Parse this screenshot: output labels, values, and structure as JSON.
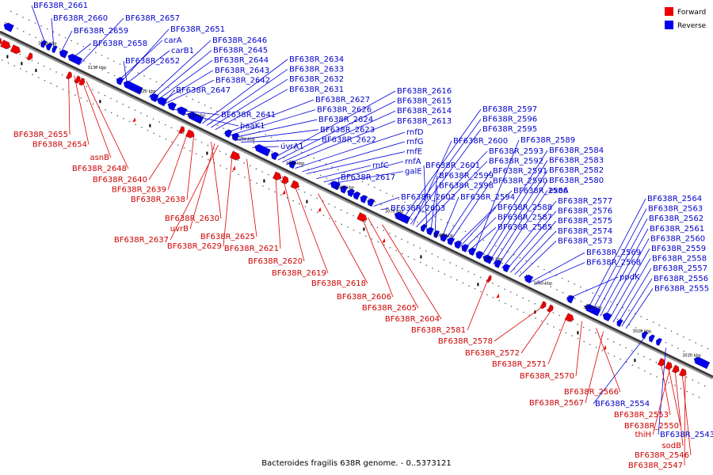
{
  "caption": "Bacteroides fragilis 638R genome. - 0..5373121",
  "legend": {
    "forward": {
      "label": "Forward",
      "color": "#ee0000"
    },
    "reverse": {
      "label": "Reverse",
      "color": "#0000ee"
    }
  },
  "colors": {
    "forward_gene": "#ee0000",
    "reverse_gene": "#0000ee",
    "forward_text": "#cc0000",
    "reverse_text": "#0000cc",
    "backbone": "#333333",
    "sigline": "#000000"
  },
  "kbp_ticks": [
    "3140 kbp",
    "3130 kbp",
    "3120 kbp",
    "3110 kbp",
    "3100 kbp",
    "3090 kbp",
    "3080 kbp",
    "3070 kbp",
    "3060 kbp",
    "3050 kbp",
    "3040 kbp",
    "3030 kbp",
    "3020 kbp",
    "3010 kbp"
  ],
  "reverse_labels": [
    "BF638R_2661",
    "BF638R_2660",
    "BF638R_2659",
    "BF638R_2658",
    "BF638R_2657",
    "carA",
    "BF638R_2651",
    "carB1",
    "BF638R_2652",
    "BF638R_2646",
    "BF638R_2645",
    "BF638R_2644",
    "BF638R_2643",
    "BF638R_2642",
    "BF638R_2647",
    "BF638R_2641",
    "paaK1",
    "BF638R_2634",
    "BF638R_2633",
    "BF638R_2632",
    "BF638R_2631",
    "BF638R_2627",
    "BF638R_2626",
    "BF638R_2624",
    "BF638R_2623",
    "BF638R_2622",
    "uvrA1",
    "BF638R_2616",
    "BF638R_2615",
    "BF638R_2614",
    "BF638R_2613",
    "rnfD",
    "rnfG",
    "rnfE",
    "rnfC",
    "rnfA",
    "galE",
    "BF638R_2617",
    "BF638R_2602",
    "BF638R_2603",
    "BF638R_2597",
    "BF638R_2596",
    "BF638R_2595",
    "BF638R_2600",
    "BF638R_2593",
    "BF638R_2592",
    "BF638R_2601",
    "BF638R_2599",
    "BF638R_2598",
    "BF638R_2594",
    "BF638R_2591",
    "BF638R_2590",
    "BF638R_2586",
    "BF638R_2588",
    "BF638R_2587",
    "BF638R_2585",
    "BF638R_2589",
    "BF638R_2584",
    "BF638R_2583",
    "BF638R_2582",
    "BF638R_2580",
    "exoA",
    "BF638R_2577",
    "BF638R_2576",
    "BF638R_2575",
    "BF638R_2574",
    "BF638R_2573",
    "BF638R_2569",
    "BF638R_2568",
    "ppdK",
    "BF638R_2564",
    "BF638R_2563",
    "BF638R_2562",
    "BF638R_2561",
    "BF638R_2560",
    "BF638R_2559",
    "BF638R_2558",
    "BF638R_2557",
    "BF638R_2556",
    "BF638R_2555",
    "BF638R_2554",
    "BF638R_2543"
  ],
  "forward_labels": [
    "BF638R_2655",
    "BF638R_2654",
    "asnB",
    "BF638R_2648",
    "BF638R_2640",
    "BF638R_2639",
    "BF638R_2638",
    "BF638R_2630",
    "uvrB",
    "BF638R_2637",
    "BF638R_2629",
    "BF638R_2625",
    "BF638R_2621",
    "BF638R_2620",
    "BF638R_2619",
    "BF638R_2618",
    "BF638R_2606",
    "BF638R_2605",
    "BF638R_2604",
    "BF638R_2581",
    "BF638R_2578",
    "BF638R_2572",
    "BF638R_2571",
    "BF638R_2570",
    "BF638R_2566",
    "BF638R_2567",
    "BF638R_2553",
    "BF638R_2550",
    "thiH",
    "sodB",
    "BF638R_2546",
    "BF638R_2547"
  ]
}
